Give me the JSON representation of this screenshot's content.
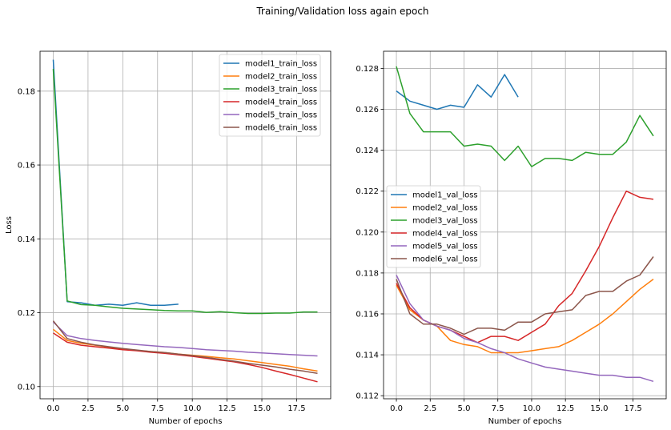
{
  "suptitle": "Training/Validation loss again epoch",
  "chart_data": [
    {
      "type": "line",
      "xlabel": "Number of epochs",
      "ylabel": "Loss",
      "xlim": [
        -0.95,
        19.95
      ],
      "ylim": [
        0.0967,
        0.1908
      ],
      "xticks": [
        0.0,
        2.5,
        5.0,
        7.5,
        10.0,
        12.5,
        15.0,
        17.5
      ],
      "xtick_labels": [
        "0.0",
        "2.5",
        "5.0",
        "7.5",
        "10.0",
        "12.5",
        "15.0",
        "17.5"
      ],
      "yticks": [
        0.1,
        0.12,
        0.14,
        0.16,
        0.18
      ],
      "ytick_labels": [
        "0.10",
        "0.12",
        "0.14",
        "0.16",
        "0.18"
      ],
      "grid": true,
      "legend_position": "upper-right",
      "series": [
        {
          "name": "model1_train_loss",
          "color": "#1f77b4",
          "x": [
            0,
            1,
            2,
            3,
            4,
            5,
            6,
            7,
            8,
            9
          ],
          "y": [
            0.1885,
            0.123,
            0.1227,
            0.122,
            0.1223,
            0.122,
            0.1227,
            0.122,
            0.122,
            0.1223
          ]
        },
        {
          "name": "model2_train_loss",
          "color": "#ff7f0e",
          "x": [
            0,
            1,
            2,
            3,
            4,
            5,
            6,
            7,
            8,
            9,
            10,
            11,
            12,
            13,
            14,
            15,
            16,
            17,
            18,
            19
          ],
          "y": [
            0.1155,
            0.1125,
            0.1117,
            0.1112,
            0.1107,
            0.1102,
            0.1098,
            0.1095,
            0.1092,
            0.1088,
            0.1085,
            0.1082,
            0.1078,
            0.1075,
            0.107,
            0.1065,
            0.106,
            0.1055,
            0.1048,
            0.1042
          ]
        },
        {
          "name": "model3_train_loss",
          "color": "#2ca02c",
          "x": [
            0,
            1,
            2,
            3,
            4,
            5,
            6,
            7,
            8,
            9,
            10,
            11,
            12,
            13,
            14,
            15,
            16,
            17,
            18,
            19
          ],
          "y": [
            0.186,
            0.1232,
            0.1222,
            0.122,
            0.1216,
            0.1212,
            0.121,
            0.1208,
            0.1206,
            0.1205,
            0.1205,
            0.1201,
            0.1203,
            0.12,
            0.1198,
            0.1198,
            0.1199,
            0.1199,
            0.1202,
            0.1202
          ]
        },
        {
          "name": "model4_train_loss",
          "color": "#d62728",
          "x": [
            0,
            1,
            2,
            3,
            4,
            5,
            6,
            7,
            8,
            9,
            10,
            11,
            12,
            13,
            14,
            15,
            16,
            17,
            18,
            19
          ],
          "y": [
            0.1145,
            0.112,
            0.1112,
            0.1108,
            0.1104,
            0.11,
            0.1097,
            0.1093,
            0.109,
            0.1086,
            0.1082,
            0.1077,
            0.1072,
            0.1067,
            0.106,
            0.1052,
            0.1042,
            0.1033,
            0.1023,
            0.1013
          ]
        },
        {
          "name": "model5_train_loss",
          "color": "#9467bd",
          "x": [
            0,
            1,
            2,
            3,
            4,
            5,
            6,
            7,
            8,
            9,
            10,
            11,
            12,
            13,
            14,
            15,
            16,
            17,
            18,
            19
          ],
          "y": [
            0.1175,
            0.1138,
            0.113,
            0.1125,
            0.1121,
            0.1117,
            0.1114,
            0.1111,
            0.1108,
            0.1106,
            0.1103,
            0.11,
            0.1098,
            0.1096,
            0.1093,
            0.1091,
            0.1089,
            0.1087,
            0.1085,
            0.1083
          ]
        },
        {
          "name": "model6_train_loss",
          "color": "#8c564b",
          "x": [
            0,
            1,
            2,
            3,
            4,
            5,
            6,
            7,
            8,
            9,
            10,
            11,
            12,
            13,
            14,
            15,
            16,
            17,
            18,
            19
          ],
          "y": [
            0.1178,
            0.113,
            0.112,
            0.1113,
            0.1108,
            0.1103,
            0.1099,
            0.1095,
            0.1092,
            0.1088,
            0.1084,
            0.1079,
            0.1074,
            0.1069,
            0.1063,
            0.1058,
            0.1053,
            0.1047,
            0.1042,
            0.1036
          ]
        }
      ]
    },
    {
      "type": "line",
      "xlabel": "Number of epochs",
      "ylabel": "",
      "xlim": [
        -0.95,
        19.95
      ],
      "ylim": [
        0.11185,
        0.12884
      ],
      "xticks": [
        0.0,
        2.5,
        5.0,
        7.5,
        10.0,
        12.5,
        15.0,
        17.5
      ],
      "xtick_labels": [
        "0.0",
        "2.5",
        "5.0",
        "7.5",
        "10.0",
        "12.5",
        "15.0",
        "17.5"
      ],
      "yticks": [
        0.112,
        0.114,
        0.116,
        0.118,
        0.12,
        0.122,
        0.124,
        0.126,
        0.128
      ],
      "ytick_labels": [
        "0.112",
        "0.114",
        "0.116",
        "0.118",
        "0.120",
        "0.122",
        "0.124",
        "0.126",
        "0.128"
      ],
      "grid": true,
      "legend_position": "center-left",
      "series": [
        {
          "name": "model1_val_loss",
          "color": "#1f77b4",
          "x": [
            0,
            1,
            2,
            3,
            4,
            5,
            6,
            7,
            8,
            9
          ],
          "y": [
            0.1269,
            0.1264,
            0.1262,
            0.126,
            0.1262,
            0.1261,
            0.1272,
            0.1266,
            0.1277,
            0.1266
          ]
        },
        {
          "name": "model2_val_loss",
          "color": "#ff7f0e",
          "x": [
            0,
            1,
            2,
            3,
            4,
            5,
            6,
            7,
            8,
            9,
            10,
            11,
            12,
            13,
            14,
            15,
            16,
            17,
            18,
            19
          ],
          "y": [
            0.1174,
            0.1162,
            0.1157,
            0.1154,
            0.1147,
            0.1145,
            0.1144,
            0.1141,
            0.1141,
            0.1141,
            0.1142,
            0.1143,
            0.1144,
            0.1147,
            0.1151,
            0.1155,
            0.116,
            0.1166,
            0.1172,
            0.1177
          ]
        },
        {
          "name": "model3_val_loss",
          "color": "#2ca02c",
          "x": [
            0,
            1,
            2,
            3,
            4,
            5,
            6,
            7,
            8,
            9,
            10,
            11,
            12,
            13,
            14,
            15,
            16,
            17,
            18,
            19
          ],
          "y": [
            0.1281,
            0.1258,
            0.1249,
            0.1249,
            0.1249,
            0.1242,
            0.1243,
            0.1242,
            0.1235,
            0.1242,
            0.1232,
            0.1236,
            0.1236,
            0.1235,
            0.1239,
            0.1238,
            0.1238,
            0.1244,
            0.1257,
            0.1247
          ]
        },
        {
          "name": "model4_val_loss",
          "color": "#d62728",
          "x": [
            0,
            1,
            2,
            3,
            4,
            5,
            6,
            7,
            8,
            9,
            10,
            11,
            12,
            13,
            14,
            15,
            16,
            17,
            18,
            19
          ],
          "y": [
            0.1175,
            0.1163,
            0.1157,
            0.1154,
            0.1152,
            0.1149,
            0.1146,
            0.1149,
            0.1149,
            0.1147,
            0.1151,
            0.1155,
            0.1164,
            0.117,
            0.1181,
            0.1193,
            0.1207,
            0.122,
            0.1217,
            0.1216
          ]
        },
        {
          "name": "model5_val_loss",
          "color": "#9467bd",
          "x": [
            0,
            1,
            2,
            3,
            4,
            5,
            6,
            7,
            8,
            9,
            10,
            11,
            12,
            13,
            14,
            15,
            16,
            17,
            18,
            19
          ],
          "y": [
            0.1179,
            0.1165,
            0.1157,
            0.1154,
            0.1152,
            0.1148,
            0.1146,
            0.1143,
            0.1141,
            0.1138,
            0.1136,
            0.1134,
            0.1133,
            0.1132,
            0.1131,
            0.113,
            0.113,
            0.1129,
            0.1129,
            0.1127
          ]
        },
        {
          "name": "model6_val_loss",
          "color": "#8c564b",
          "x": [
            0,
            1,
            2,
            3,
            4,
            5,
            6,
            7,
            8,
            9,
            10,
            11,
            12,
            13,
            14,
            15,
            16,
            17,
            18,
            19
          ],
          "y": [
            0.1177,
            0.116,
            0.1155,
            0.1155,
            0.1153,
            0.115,
            0.1153,
            0.1153,
            0.1152,
            0.1156,
            0.1156,
            0.116,
            0.1161,
            0.1162,
            0.1169,
            0.1171,
            0.1171,
            0.1176,
            0.1179,
            0.1188
          ]
        }
      ]
    }
  ]
}
